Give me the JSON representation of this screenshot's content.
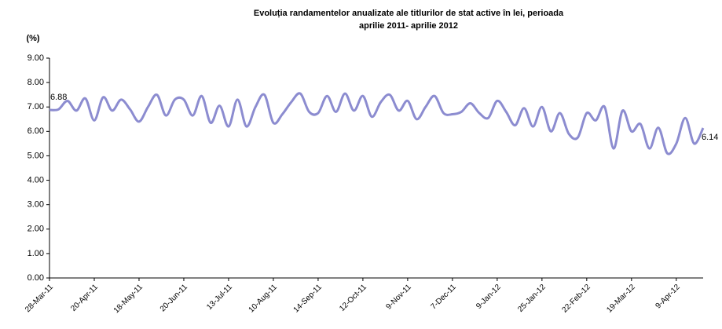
{
  "chart_data": {
    "type": "line",
    "title": [
      "Evoluția randamentelor anualizate ale titlurilor de stat active în lei, perioada",
      "aprilie  2011- aprilie  2012"
    ],
    "y_label": "(%)",
    "categories": [
      "28-Mar-11",
      null,
      null,
      null,
      null,
      "20-Apr-11",
      null,
      null,
      null,
      null,
      "18-May-11",
      null,
      null,
      null,
      null,
      "20-Jun-11",
      null,
      null,
      null,
      null,
      "13-Jul-11",
      null,
      null,
      null,
      null,
      "10-Aug-11",
      null,
      null,
      null,
      null,
      "14-Sep-11",
      null,
      null,
      null,
      null,
      "12-Oct-11",
      null,
      null,
      null,
      null,
      "9-Nov-11",
      null,
      null,
      null,
      null,
      "7-Dec-11",
      null,
      null,
      null,
      null,
      "9-Jan-12",
      null,
      null,
      null,
      null,
      "25-Jan-12",
      null,
      null,
      null,
      null,
      "22-Feb-12",
      null,
      null,
      null,
      null,
      "19-Mar-12",
      null,
      null,
      null,
      null,
      "9-Apr-12",
      null,
      null,
      null
    ],
    "series": [
      {
        "name": null,
        "color": "#8c8cd0",
        "values": [
          6.88,
          6.9,
          7.25,
          6.85,
          7.35,
          6.45,
          7.4,
          6.85,
          7.3,
          6.9,
          6.4,
          7.0,
          7.5,
          6.65,
          7.3,
          7.3,
          6.65,
          7.45,
          6.35,
          7.05,
          6.2,
          7.3,
          6.2,
          7.0,
          7.5,
          6.35,
          6.7,
          7.2,
          7.55,
          6.8,
          6.75,
          7.45,
          6.8,
          7.55,
          6.85,
          7.45,
          6.6,
          7.2,
          7.5,
          6.85,
          7.25,
          6.5,
          7.0,
          7.45,
          6.75,
          6.7,
          6.8,
          7.15,
          6.75,
          6.55,
          7.25,
          6.8,
          6.25,
          6.95,
          6.2,
          7.0,
          6.0,
          6.75,
          5.9,
          5.75,
          6.75,
          6.45,
          7.0,
          5.3,
          6.85,
          6.0,
          6.3,
          5.3,
          6.15,
          5.1,
          5.5,
          6.55,
          5.5,
          6.14
        ],
        "value_labels": [
          "6.88",
          null,
          null,
          null,
          null,
          null,
          null,
          null,
          null,
          null,
          null,
          null,
          null,
          null,
          null,
          null,
          null,
          null,
          null,
          null,
          null,
          null,
          null,
          null,
          null,
          null,
          null,
          null,
          null,
          null,
          null,
          null,
          null,
          null,
          null,
          null,
          null,
          null,
          null,
          null,
          null,
          null,
          null,
          null,
          null,
          null,
          null,
          null,
          null,
          null,
          null,
          null,
          null,
          null,
          null,
          null,
          null,
          null,
          null,
          null,
          null,
          null,
          null,
          null,
          null,
          null,
          null,
          null,
          null,
          null,
          null,
          null,
          null,
          "6.14"
        ]
      }
    ],
    "ylim": [
      0,
      9
    ],
    "yticks": [
      {
        "value": 0,
        "label": "0.00"
      },
      {
        "value": 1,
        "label": "1.00"
      },
      {
        "value": 2,
        "label": "2.00"
      },
      {
        "value": 3,
        "label": "3.00"
      },
      {
        "value": 4,
        "label": "4.00"
      },
      {
        "value": 5,
        "label": "5.00"
      },
      {
        "value": 6,
        "label": "6.00"
      },
      {
        "value": 7,
        "label": "7.00"
      },
      {
        "value": 8,
        "label": "8.00"
      },
      {
        "value": 9,
        "label": "9.00"
      }
    ],
    "grid": false
  }
}
